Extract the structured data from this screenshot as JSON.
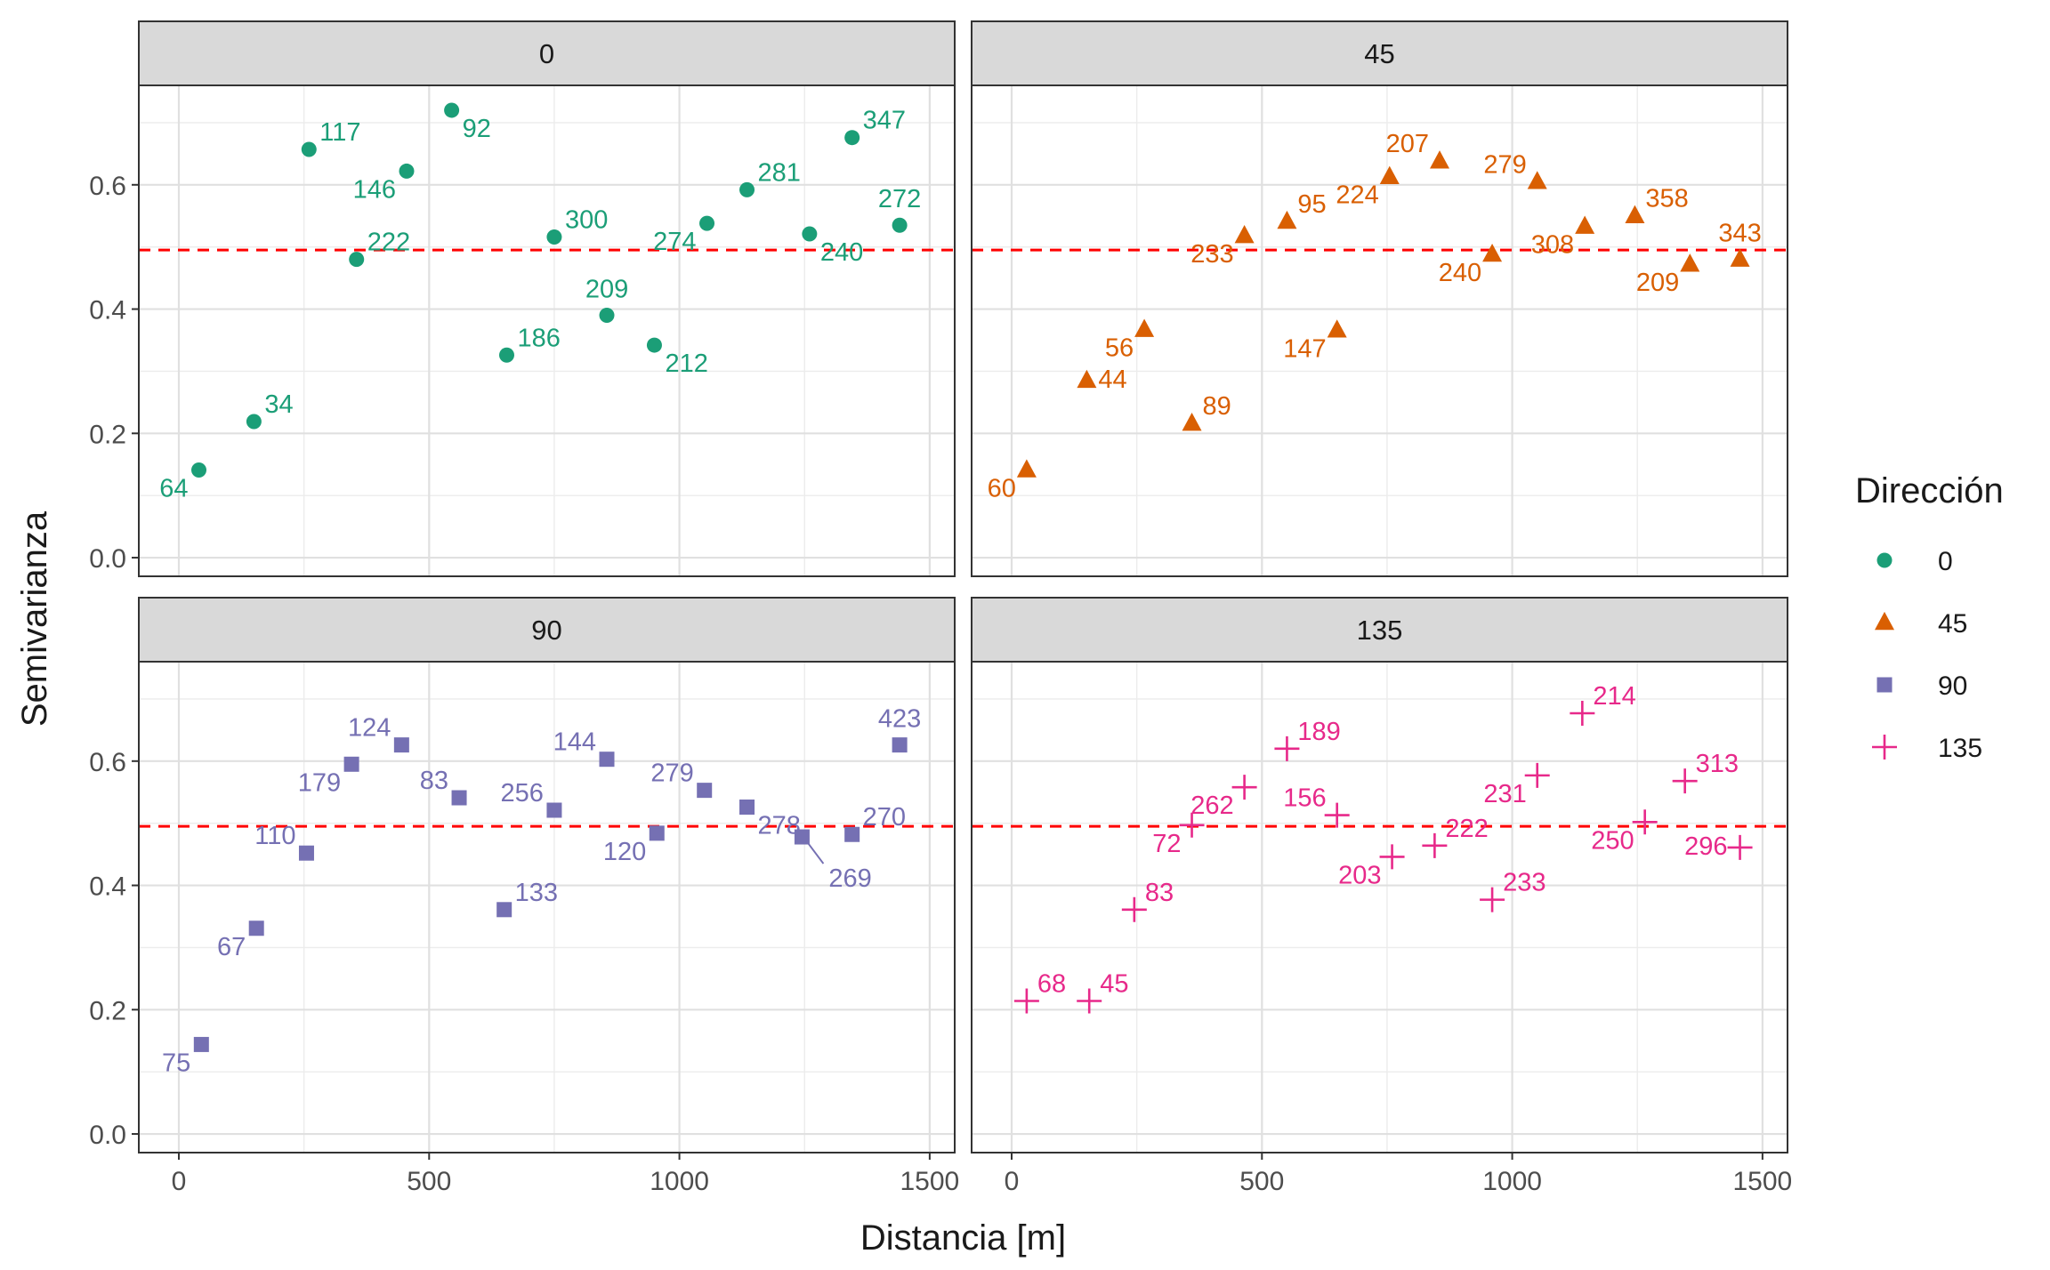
{
  "chart_data": {
    "type": "scatter",
    "layout": "facet-grid-2x2",
    "xlabel": "Distancia [m]",
    "ylabel": "Semivarianza",
    "xlim": [
      -80,
      1550
    ],
    "ylim": [
      -0.03,
      0.76
    ],
    "x_ticks": [
      0,
      500,
      1000,
      1500
    ],
    "y_ticks": [
      0.0,
      0.2,
      0.4,
      0.6
    ],
    "y_tick_labels": [
      "0.0",
      "0.2",
      "0.4",
      "0.6"
    ],
    "grid": true,
    "reference_line": {
      "y": 0.495,
      "color": "#ff0000",
      "style": "dashed"
    },
    "legend": {
      "title": "Dirección",
      "placement": "right",
      "entries": [
        {
          "label": "0",
          "shape": "circle",
          "color": "#1b9e77"
        },
        {
          "label": "45",
          "shape": "triangle",
          "color": "#d95f02"
        },
        {
          "label": "90",
          "shape": "square",
          "color": "#7570b3"
        },
        {
          "label": "135",
          "shape": "plus",
          "color": "#e7298a"
        }
      ]
    },
    "panels": [
      {
        "strip": "0",
        "shape": "circle",
        "color": "#1b9e77",
        "points": [
          {
            "x": 40,
            "y": 0.141,
            "n": "64",
            "ld": "bl"
          },
          {
            "x": 150,
            "y": 0.219,
            "n": "34",
            "ld": "tr"
          },
          {
            "x": 260,
            "y": 0.657,
            "n": "117",
            "ld": "tr"
          },
          {
            "x": 355,
            "y": 0.48,
            "n": "222",
            "ld": "tr"
          },
          {
            "x": 455,
            "y": 0.622,
            "n": "146",
            "ld": "bl"
          },
          {
            "x": 545,
            "y": 0.72,
            "n": "92",
            "ld": "br"
          },
          {
            "x": 655,
            "y": 0.326,
            "n": "186",
            "ld": "tr"
          },
          {
            "x": 750,
            "y": 0.516,
            "n": "300",
            "ld": "tr"
          },
          {
            "x": 855,
            "y": 0.39,
            "n": "209",
            "ld": "t"
          },
          {
            "x": 950,
            "y": 0.342,
            "n": "212",
            "ld": "br"
          },
          {
            "x": 1055,
            "y": 0.538,
            "n": "274",
            "ld": "bl"
          },
          {
            "x": 1135,
            "y": 0.592,
            "n": "281",
            "ld": "tr"
          },
          {
            "x": 1260,
            "y": 0.521,
            "n": "240",
            "ld": "br"
          },
          {
            "x": 1345,
            "y": 0.676,
            "n": "347",
            "ld": "tr"
          },
          {
            "x": 1440,
            "y": 0.535,
            "n": "272",
            "ld": "t"
          }
        ]
      },
      {
        "strip": "45",
        "shape": "triangle",
        "color": "#d95f02",
        "points": [
          {
            "x": 30,
            "y": 0.141,
            "n": "60",
            "ld": "bl"
          },
          {
            "x": 150,
            "y": 0.285,
            "n": "44",
            "ld": "r"
          },
          {
            "x": 265,
            "y": 0.367,
            "n": "56",
            "ld": "bl"
          },
          {
            "x": 360,
            "y": 0.216,
            "n": "89",
            "ld": "tr"
          },
          {
            "x": 465,
            "y": 0.518,
            "n": "233",
            "ld": "bl"
          },
          {
            "x": 550,
            "y": 0.541,
            "n": "95",
            "ld": "tr"
          },
          {
            "x": 650,
            "y": 0.366,
            "n": "147",
            "ld": "bl"
          },
          {
            "x": 755,
            "y": 0.613,
            "n": "224",
            "ld": "bl"
          },
          {
            "x": 855,
            "y": 0.638,
            "n": "207",
            "ld": "tl"
          },
          {
            "x": 960,
            "y": 0.488,
            "n": "240",
            "ld": "bl"
          },
          {
            "x": 1050,
            "y": 0.605,
            "n": "279",
            "ld": "tl"
          },
          {
            "x": 1145,
            "y": 0.533,
            "n": "308",
            "ld": "bl"
          },
          {
            "x": 1245,
            "y": 0.55,
            "n": "358",
            "ld": "tr"
          },
          {
            "x": 1355,
            "y": 0.472,
            "n": "209",
            "ld": "bl"
          },
          {
            "x": 1455,
            "y": 0.48,
            "n": "343",
            "ld": "t"
          }
        ]
      },
      {
        "strip": "90",
        "shape": "square",
        "color": "#7570b3",
        "points": [
          {
            "x": 45,
            "y": 0.144,
            "n": "75",
            "ld": "bl"
          },
          {
            "x": 155,
            "y": 0.331,
            "n": "67",
            "ld": "bl"
          },
          {
            "x": 255,
            "y": 0.452,
            "n": "110",
            "ld": "tl"
          },
          {
            "x": 345,
            "y": 0.595,
            "n": "179",
            "ld": "bl"
          },
          {
            "x": 445,
            "y": 0.626,
            "n": "124",
            "ld": "tl"
          },
          {
            "x": 560,
            "y": 0.541,
            "n": "83",
            "ld": "tl"
          },
          {
            "x": 650,
            "y": 0.361,
            "n": "133",
            "ld": "tr"
          },
          {
            "x": 750,
            "y": 0.521,
            "n": "256",
            "ld": "tl"
          },
          {
            "x": 855,
            "y": 0.603,
            "n": "144",
            "ld": "tl"
          },
          {
            "x": 955,
            "y": 0.484,
            "n": "120",
            "ld": "bl"
          },
          {
            "x": 1050,
            "y": 0.553,
            "n": "279",
            "ld": "tl"
          },
          {
            "x": 1135,
            "y": 0.526,
            "n": "278",
            "ld": "br"
          },
          {
            "x": 1245,
            "y": 0.478,
            "n": "269",
            "ld": "br2"
          },
          {
            "x": 1345,
            "y": 0.482,
            "n": "270",
            "ld": "tr"
          },
          {
            "x": 1440,
            "y": 0.626,
            "n": "423",
            "ld": "t"
          }
        ]
      },
      {
        "strip": "135",
        "shape": "plus",
        "color": "#e7298a",
        "points": [
          {
            "x": 30,
            "y": 0.214,
            "n": "68",
            "ld": "tr"
          },
          {
            "x": 155,
            "y": 0.214,
            "n": "45",
            "ld": "tr"
          },
          {
            "x": 245,
            "y": 0.361,
            "n": "83",
            "ld": "tr"
          },
          {
            "x": 360,
            "y": 0.497,
            "n": "72",
            "ld": "bl"
          },
          {
            "x": 465,
            "y": 0.558,
            "n": "262",
            "ld": "bl"
          },
          {
            "x": 550,
            "y": 0.62,
            "n": "189",
            "ld": "tr"
          },
          {
            "x": 650,
            "y": 0.513,
            "n": "156",
            "ld": "tl"
          },
          {
            "x": 760,
            "y": 0.446,
            "n": "203",
            "ld": "bl"
          },
          {
            "x": 845,
            "y": 0.464,
            "n": "222",
            "ld": "tr"
          },
          {
            "x": 960,
            "y": 0.377,
            "n": "233",
            "ld": "tr"
          },
          {
            "x": 1050,
            "y": 0.577,
            "n": "231",
            "ld": "bl"
          },
          {
            "x": 1140,
            "y": 0.677,
            "n": "214",
            "ld": "tr"
          },
          {
            "x": 1265,
            "y": 0.502,
            "n": "250",
            "ld": "bl"
          },
          {
            "x": 1345,
            "y": 0.568,
            "n": "313",
            "ld": "tr"
          },
          {
            "x": 1455,
            "y": 0.461,
            "n": "296",
            "ld": "l"
          }
        ]
      }
    ]
  }
}
